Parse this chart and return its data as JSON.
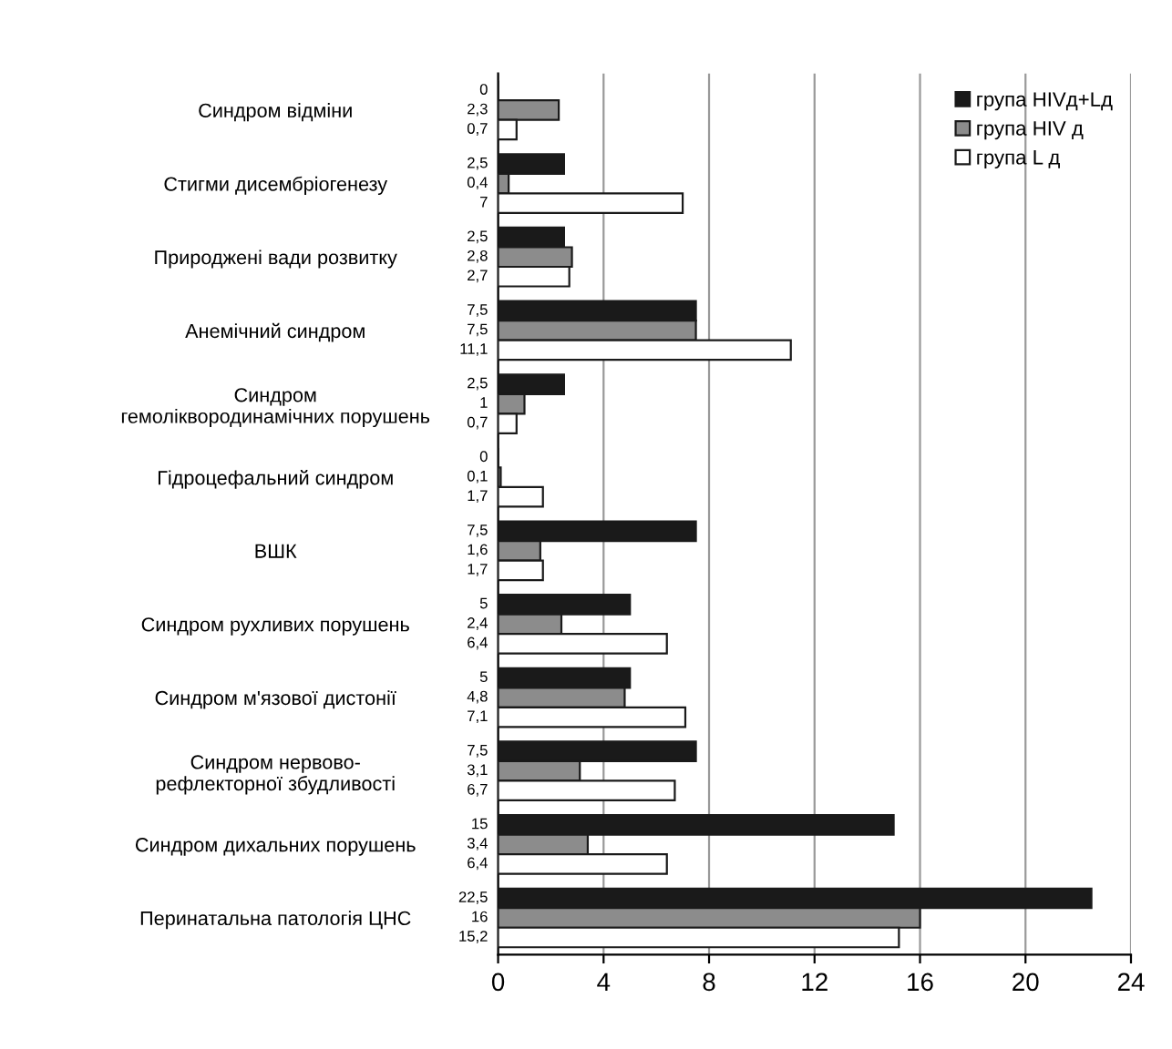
{
  "chart_data": {
    "type": "bar",
    "orientation": "horizontal",
    "categories": [
      "Синдром відміни",
      "Стигми дисембріогенезу",
      "Природжені вади розвитку",
      "Анемічний синдром",
      "Синдром\nгемоліквородинамічних порушень",
      "Гідроцефальний синдром",
      "ВШК",
      "Синдром рухливих порушень",
      "Синдром м'язової дистонії",
      "Синдром нервово-\nрефлекторної збудливості",
      "Синдром дихальних порушень",
      "Перинатальна патологія ЦНС"
    ],
    "series": [
      {
        "name": "група HIVд+Lд",
        "color": "#1a1a1a",
        "values": [
          0,
          2.5,
          2.5,
          7.5,
          2.5,
          0,
          7.5,
          5,
          5,
          7.5,
          15,
          22.5
        ],
        "value_labels": [
          "0",
          "2,5",
          "2,5",
          "7,5",
          "2,5",
          "0",
          "7,5",
          "5",
          "5",
          "7,5",
          "15",
          "22,5"
        ]
      },
      {
        "name": "група HIV д",
        "color": "#8c8c8c",
        "values": [
          2.3,
          0.4,
          2.8,
          7.5,
          1,
          0.1,
          1.6,
          2.4,
          4.8,
          3.1,
          3.4,
          16
        ],
        "value_labels": [
          "2,3",
          "0,4",
          "2,8",
          "7,5",
          "1",
          "0,1",
          "1,6",
          "2,4",
          "4,8",
          "3,1",
          "3,4",
          "16"
        ]
      },
      {
        "name": "група L д",
        "color": "#ffffff",
        "values": [
          0.7,
          7,
          2.7,
          11.1,
          0.7,
          1.7,
          1.7,
          6.4,
          7.1,
          6.7,
          6.4,
          15.2
        ],
        "value_labels": [
          "0,7",
          "7",
          "2,7",
          "11,1",
          "0,7",
          "1,7",
          "1,7",
          "6,4",
          "7,1",
          "6,7",
          "6,4",
          "15,2"
        ]
      }
    ],
    "xlim": [
      0,
      24
    ],
    "xticks": [
      0,
      4,
      8,
      12,
      16,
      20,
      24
    ],
    "grid": "x",
    "legend": "top right"
  }
}
